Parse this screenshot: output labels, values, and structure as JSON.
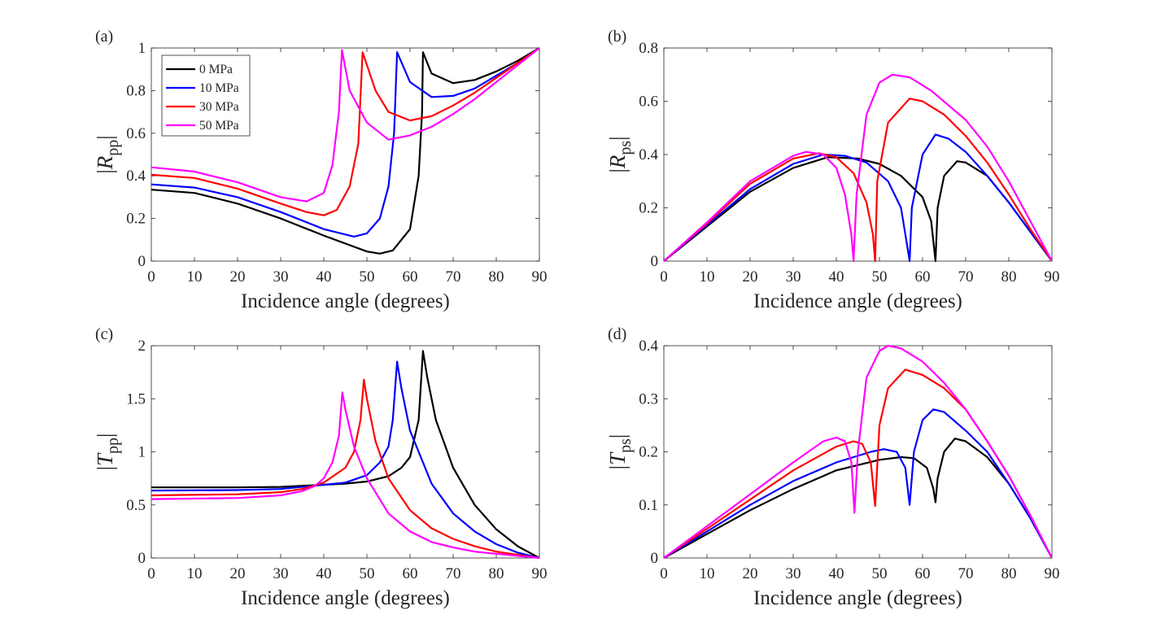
{
  "series_colors": {
    "0 MPa": "#000000",
    "10 MPa": "#0000ff",
    "30 MPa": "#ff0000",
    "50 MPa": "#ff00ff"
  },
  "chart_data": [
    {
      "panel": "(a)",
      "type": "line",
      "xlabel": "Incidence angle (degrees)",
      "ylabel_symbol": "R",
      "ylabel_sub": "pp",
      "xlim": [
        0,
        90
      ],
      "ylim": [
        0,
        1
      ],
      "xticks": [
        "0",
        "10",
        "20",
        "30",
        "40",
        "50",
        "60",
        "70",
        "80",
        "90"
      ],
      "yticks": [
        "0",
        "0.2",
        "0.4",
        "0.6",
        "0.8",
        "1"
      ],
      "grid": false,
      "legend": "top-left",
      "series": [
        {
          "name": "0 MPa",
          "x": [
            0,
            10,
            20,
            30,
            40,
            50,
            53,
            56,
            60,
            62,
            62.8,
            63,
            65,
            70,
            75,
            80,
            85,
            90
          ],
          "y": [
            0.335,
            0.32,
            0.27,
            0.2,
            0.12,
            0.045,
            0.035,
            0.05,
            0.15,
            0.4,
            0.7,
            0.98,
            0.88,
            0.835,
            0.85,
            0.89,
            0.94,
            1
          ]
        },
        {
          "name": "10 MPa",
          "x": [
            0,
            10,
            20,
            30,
            40,
            47,
            50,
            53,
            55,
            56.3,
            57,
            60,
            65,
            70,
            75,
            80,
            85,
            90
          ],
          "y": [
            0.36,
            0.345,
            0.3,
            0.23,
            0.15,
            0.115,
            0.13,
            0.2,
            0.35,
            0.6,
            0.98,
            0.84,
            0.77,
            0.775,
            0.81,
            0.87,
            0.93,
            1
          ]
        },
        {
          "name": "30 MPa",
          "x": [
            0,
            10,
            20,
            30,
            36,
            40,
            43,
            46,
            48,
            49,
            52,
            55,
            60,
            65,
            70,
            75,
            80,
            85,
            90
          ],
          "y": [
            0.405,
            0.39,
            0.34,
            0.27,
            0.23,
            0.215,
            0.24,
            0.35,
            0.55,
            0.98,
            0.8,
            0.7,
            0.66,
            0.68,
            0.73,
            0.79,
            0.86,
            0.93,
            1
          ]
        },
        {
          "name": "50 MPa",
          "x": [
            0,
            10,
            20,
            30,
            36,
            40,
            42,
            43.5,
            44.2,
            46,
            50,
            55,
            60,
            65,
            70,
            75,
            80,
            85,
            90
          ],
          "y": [
            0.44,
            0.42,
            0.37,
            0.3,
            0.28,
            0.32,
            0.45,
            0.7,
            0.99,
            0.8,
            0.65,
            0.57,
            0.59,
            0.63,
            0.69,
            0.76,
            0.84,
            0.92,
            1
          ]
        }
      ]
    },
    {
      "panel": "(b)",
      "type": "line",
      "xlabel": "Incidence angle (degrees)",
      "ylabel_symbol": "R",
      "ylabel_sub": "ps",
      "xlim": [
        0,
        90
      ],
      "ylim": [
        0,
        0.8
      ],
      "xticks": [
        "0",
        "10",
        "20",
        "30",
        "40",
        "50",
        "60",
        "70",
        "80",
        "90"
      ],
      "yticks": [
        "0",
        "0.2",
        "0.4",
        "0.6",
        "0.8"
      ],
      "grid": false,
      "series": [
        {
          "name": "0 MPa",
          "x": [
            0,
            10,
            20,
            30,
            38,
            45,
            50,
            55,
            60,
            62,
            63,
            63.5,
            65,
            68,
            70,
            75,
            80,
            85,
            90
          ],
          "y": [
            0,
            0.13,
            0.26,
            0.35,
            0.39,
            0.385,
            0.365,
            0.32,
            0.24,
            0.15,
            0,
            0.2,
            0.32,
            0.375,
            0.37,
            0.32,
            0.22,
            0.11,
            0
          ]
        },
        {
          "name": "10 MPa",
          "x": [
            0,
            10,
            20,
            30,
            37,
            42,
            47,
            52,
            55,
            56.5,
            57,
            57.5,
            60,
            63,
            66,
            70,
            75,
            80,
            85,
            90
          ],
          "y": [
            0,
            0.135,
            0.27,
            0.365,
            0.4,
            0.395,
            0.37,
            0.3,
            0.2,
            0.05,
            0,
            0.2,
            0.4,
            0.475,
            0.46,
            0.41,
            0.32,
            0.22,
            0.11,
            0
          ]
        },
        {
          "name": "30 MPa",
          "x": [
            0,
            10,
            20,
            30,
            36,
            40,
            44,
            47,
            48.5,
            49,
            49.5,
            52,
            57,
            60,
            65,
            70,
            75,
            80,
            85,
            90
          ],
          "y": [
            0,
            0.14,
            0.29,
            0.385,
            0.405,
            0.39,
            0.33,
            0.22,
            0.1,
            0,
            0.3,
            0.52,
            0.61,
            0.6,
            0.55,
            0.47,
            0.37,
            0.25,
            0.12,
            0
          ]
        },
        {
          "name": "50 MPa",
          "x": [
            0,
            10,
            20,
            30,
            33,
            37,
            40,
            42,
            43.5,
            44,
            44.7,
            47,
            50,
            53,
            57,
            62,
            70,
            75,
            80,
            85,
            90
          ],
          "y": [
            0,
            0.145,
            0.3,
            0.395,
            0.41,
            0.4,
            0.35,
            0.25,
            0.1,
            0,
            0.25,
            0.55,
            0.67,
            0.7,
            0.69,
            0.64,
            0.53,
            0.43,
            0.3,
            0.15,
            0
          ]
        }
      ]
    },
    {
      "panel": "(c)",
      "type": "line",
      "xlabel": "Incidence angle (degrees)",
      "ylabel_symbol": "T",
      "ylabel_sub": "pp",
      "xlim": [
        0,
        90
      ],
      "ylim": [
        0,
        2
      ],
      "xticks": [
        "0",
        "10",
        "20",
        "30",
        "40",
        "50",
        "60",
        "70",
        "80",
        "90"
      ],
      "yticks": [
        "0",
        "0.5",
        "1",
        "1.5",
        "2"
      ],
      "grid": false,
      "series": [
        {
          "name": "0 MPa",
          "x": [
            0,
            20,
            30,
            40,
            45,
            50,
            55,
            58,
            60,
            62,
            63,
            64,
            66,
            70,
            75,
            80,
            85,
            90
          ],
          "y": [
            0.665,
            0.665,
            0.67,
            0.69,
            0.7,
            0.72,
            0.77,
            0.85,
            0.95,
            1.3,
            1.95,
            1.7,
            1.3,
            0.85,
            0.5,
            0.27,
            0.11,
            0
          ]
        },
        {
          "name": "10 MPa",
          "x": [
            0,
            20,
            30,
            40,
            45,
            50,
            53,
            55,
            56,
            57,
            58,
            60,
            65,
            70,
            75,
            80,
            85,
            90
          ],
          "y": [
            0.635,
            0.64,
            0.65,
            0.69,
            0.71,
            0.78,
            0.9,
            1.05,
            1.3,
            1.85,
            1.6,
            1.2,
            0.7,
            0.42,
            0.25,
            0.13,
            0.05,
            0
          ]
        },
        {
          "name": "30 MPa",
          "x": [
            0,
            20,
            30,
            35,
            40,
            45,
            47,
            48.5,
            49.3,
            50,
            52,
            55,
            60,
            65,
            70,
            75,
            80,
            85,
            90
          ],
          "y": [
            0.59,
            0.6,
            0.62,
            0.65,
            0.71,
            0.85,
            1.0,
            1.3,
            1.68,
            1.5,
            1.1,
            0.75,
            0.45,
            0.28,
            0.18,
            0.11,
            0.06,
            0.03,
            0
          ]
        },
        {
          "name": "50 MPa",
          "x": [
            0,
            20,
            30,
            35,
            38,
            40,
            42,
            43.5,
            44.3,
            45,
            47,
            50,
            55,
            60,
            65,
            70,
            75,
            80,
            85,
            90
          ],
          "y": [
            0.555,
            0.565,
            0.59,
            0.63,
            0.68,
            0.75,
            0.9,
            1.15,
            1.56,
            1.4,
            1.05,
            0.75,
            0.42,
            0.25,
            0.15,
            0.1,
            0.06,
            0.04,
            0.02,
            0
          ]
        }
      ]
    },
    {
      "panel": "(d)",
      "type": "line",
      "xlabel": "Incidence angle (degrees)",
      "ylabel_symbol": "T",
      "ylabel_sub": "ps",
      "xlim": [
        0,
        90
      ],
      "ylim": [
        0,
        0.4
      ],
      "xticks": [
        "0",
        "10",
        "20",
        "30",
        "40",
        "50",
        "60",
        "70",
        "80",
        "90"
      ],
      "yticks": [
        "0",
        "0.1",
        "0.2",
        "0.3",
        "0.4"
      ],
      "grid": false,
      "series": [
        {
          "name": "0 MPa",
          "x": [
            0,
            10,
            20,
            30,
            40,
            50,
            55,
            58,
            61,
            62.5,
            63,
            63.5,
            65,
            67.5,
            70,
            75,
            80,
            85,
            90
          ],
          "y": [
            0,
            0.045,
            0.09,
            0.13,
            0.165,
            0.185,
            0.19,
            0.188,
            0.17,
            0.13,
            0.105,
            0.15,
            0.2,
            0.225,
            0.22,
            0.19,
            0.14,
            0.075,
            0
          ]
        },
        {
          "name": "10 MPa",
          "x": [
            0,
            10,
            20,
            30,
            40,
            48,
            51,
            54,
            56,
            57,
            58,
            60,
            62.5,
            65,
            70,
            75,
            80,
            85,
            90
          ],
          "y": [
            0,
            0.05,
            0.1,
            0.145,
            0.18,
            0.2,
            0.205,
            0.2,
            0.17,
            0.1,
            0.2,
            0.26,
            0.28,
            0.275,
            0.24,
            0.2,
            0.14,
            0.075,
            0
          ]
        },
        {
          "name": "30 MPa",
          "x": [
            0,
            10,
            20,
            30,
            40,
            44,
            46,
            48,
            49,
            50,
            52,
            56,
            60,
            65,
            70,
            75,
            80,
            85,
            90
          ],
          "y": [
            0,
            0.055,
            0.11,
            0.165,
            0.21,
            0.22,
            0.215,
            0.18,
            0.098,
            0.25,
            0.32,
            0.355,
            0.345,
            0.32,
            0.28,
            0.22,
            0.155,
            0.08,
            0
          ]
        },
        {
          "name": "50 MPa",
          "x": [
            0,
            10,
            20,
            30,
            37,
            40,
            42,
            43.5,
            44.2,
            45,
            47,
            50,
            52,
            55,
            60,
            65,
            70,
            75,
            80,
            85,
            90
          ],
          "y": [
            0,
            0.06,
            0.12,
            0.18,
            0.22,
            0.227,
            0.22,
            0.18,
            0.085,
            0.2,
            0.34,
            0.39,
            0.4,
            0.395,
            0.37,
            0.33,
            0.28,
            0.22,
            0.155,
            0.08,
            0
          ]
        }
      ]
    }
  ]
}
